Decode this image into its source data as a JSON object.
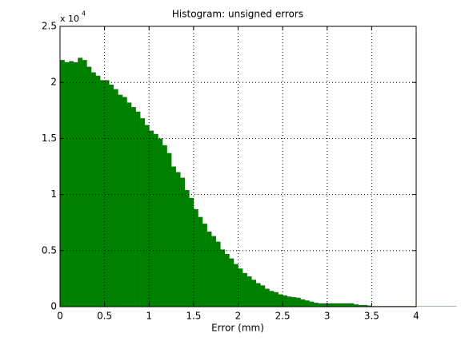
{
  "chart_data": {
    "type": "histogram",
    "title": "Histogram: unsigned errors",
    "x_label": "Error (mm)",
    "y_multiplier_base": "x 10",
    "y_multiplier_exponent": "4",
    "color": "#008000",
    "grid": true,
    "xlim": [
      0,
      4
    ],
    "xticks": [
      0,
      0.5,
      1,
      1.5,
      2,
      2.5,
      3,
      3.5,
      4
    ],
    "ylim": [
      0,
      25000
    ],
    "yticks": [
      0,
      {
        "value": 5000,
        "label": "0.5"
      },
      {
        "value": 10000,
        "label": "1"
      },
      {
        "value": 15000,
        "label": "1.5"
      },
      {
        "value": 20000,
        "label": "2"
      },
      {
        "value": 25000,
        "label": "2.5"
      }
    ],
    "bins": [
      0,
      0.05,
      0.1,
      0.15,
      0.2,
      0.25,
      0.3,
      0.35,
      0.4,
      0.45,
      0.5,
      0.55,
      0.6,
      0.65,
      0.7,
      0.75,
      0.8,
      0.85,
      0.9,
      0.95,
      1,
      1.05,
      1.1,
      1.15,
      1.2,
      1.25,
      1.3,
      1.35,
      1.4,
      1.45,
      1.5,
      1.55,
      1.6,
      1.65,
      1.7,
      1.75,
      1.8,
      1.85,
      1.9,
      1.95,
      2,
      2.05,
      2.1,
      2.15,
      2.2,
      2.25,
      2.3,
      2.35,
      2.4,
      2.45,
      2.5,
      2.55,
      2.6,
      2.65,
      2.7,
      2.75,
      2.8,
      2.85,
      2.9,
      2.95,
      3,
      3.05,
      3.1,
      3.15,
      3.2,
      3.25,
      3.3,
      3.35,
      3.4,
      3.45,
      3.5,
      3.55,
      3.6,
      3.65,
      3.7,
      3.75,
      3.8,
      3.85,
      3.9,
      3.95,
      4,
      4.05,
      4.1,
      4.15,
      4.2,
      4.25,
      4.3,
      4.35,
      4.4,
      4.45
    ],
    "values": [
      22000,
      21800,
      21900,
      21800,
      22200,
      22000,
      21400,
      20900,
      20600,
      20200,
      20200,
      19800,
      19400,
      18900,
      18700,
      18200,
      17800,
      17400,
      16800,
      16200,
      15700,
      15400,
      15000,
      14400,
      13700,
      12500,
      12000,
      11500,
      10400,
      9700,
      8700,
      8000,
      7400,
      6700,
      6300,
      5800,
      5100,
      4700,
      4300,
      3800,
      3400,
      3000,
      2700,
      2400,
      2100,
      1900,
      1600,
      1400,
      1300,
      1100,
      1000,
      900,
      850,
      800,
      650,
      550,
      450,
      350,
      300,
      300,
      300,
      300,
      300,
      300,
      300,
      300,
      200,
      150,
      150,
      100,
      50,
      50,
      50,
      50,
      50,
      50,
      50,
      50,
      50,
      50,
      30,
      30,
      30,
      30,
      30,
      30,
      30,
      30,
      30
    ]
  }
}
